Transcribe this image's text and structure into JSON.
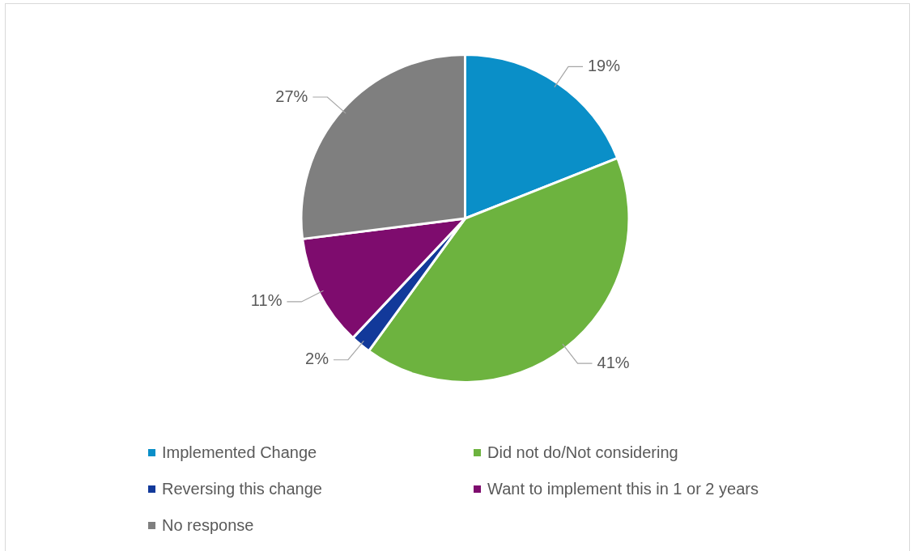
{
  "chart_data": {
    "type": "pie",
    "categories": [
      "Implemented Change",
      "Did not do/Not considering",
      "Reversing this change",
      "Want to implement this in 1 or 2 years",
      "No response"
    ],
    "values": [
      19,
      41,
      2,
      11,
      27
    ],
    "colors": [
      "#0a8fc8",
      "#6db33f",
      "#12399a",
      "#7e0c6e",
      "#7f7f7f"
    ],
    "value_labels": [
      "19%",
      "41%",
      "2%",
      "11%",
      "27%"
    ],
    "legend": "bottom"
  }
}
